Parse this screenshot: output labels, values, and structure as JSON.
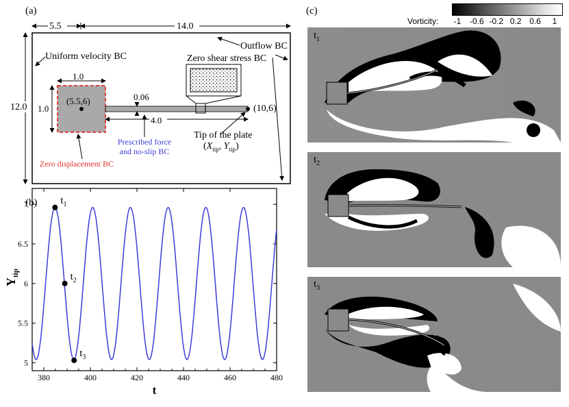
{
  "panel_a": {
    "label": "(a)",
    "dim_top_left": "5.5",
    "dim_top_right": "14.0",
    "dim_height": "12.0",
    "uniform_bc": "Uniform velocity BC",
    "outflow_bc": "Outflow BC",
    "zero_shear_bc": "Zero shear stress BC",
    "square_width": "1.0",
    "square_height": "1.0",
    "center_label": "(5.5,6)",
    "plate_thickness": "0.06",
    "plate_length": "4.0",
    "tip_coord": "(10,6)",
    "prescribed_force_line1": "Prescribed force",
    "prescribed_force_line2": "and no-slip BC",
    "zero_disp_bc": "Zero displacement BC",
    "tip_line1": "Tip of the plate",
    "tip_x": "X",
    "tip_x_sub": "tip",
    "tip_y": "Y",
    "tip_y_sub": "tip",
    "accent_red": "#e0302a",
    "accent_blue": "#3b3bd9"
  },
  "panel_b": {
    "label": "(b)"
  },
  "chart_data": {
    "type": "line",
    "xlabel": "t",
    "ylabel": "Y",
    "ylabel_sub": "tip",
    "xlim": [
      375,
      480
    ],
    "ylim": [
      4.9,
      7.2
    ],
    "xticks": [
      "380",
      "400",
      "420",
      "440",
      "460",
      "480"
    ],
    "yticks": [
      "5",
      "5.5",
      "6",
      "6.5",
      "7"
    ],
    "series": [
      {
        "color": "#3b3bd9",
        "mean": 6.0,
        "amplitude": 0.96,
        "period": 16.2,
        "phase_peak_t": 384.8,
        "x_start": 375,
        "x_end": 480
      }
    ],
    "markers": [
      {
        "label": "t",
        "sub": "1",
        "x": 384.8,
        "y": 6.96
      },
      {
        "label": "t",
        "sub": "2",
        "x": 389.0,
        "y": 6.0
      },
      {
        "label": "t",
        "sub": "3",
        "x": 393.0,
        "y": 5.03
      }
    ]
  },
  "panel_c": {
    "label": "(c)",
    "colorbar_title": "Vorticity:",
    "colorbar_ticks": [
      "-1",
      "-0.6",
      "-0.2",
      "0.2",
      "0.6",
      "1"
    ],
    "snapshots": [
      {
        "label": "t",
        "sub": "1"
      },
      {
        "label": "t",
        "sub": "2"
      },
      {
        "label": "t",
        "sub": "3"
      }
    ]
  }
}
